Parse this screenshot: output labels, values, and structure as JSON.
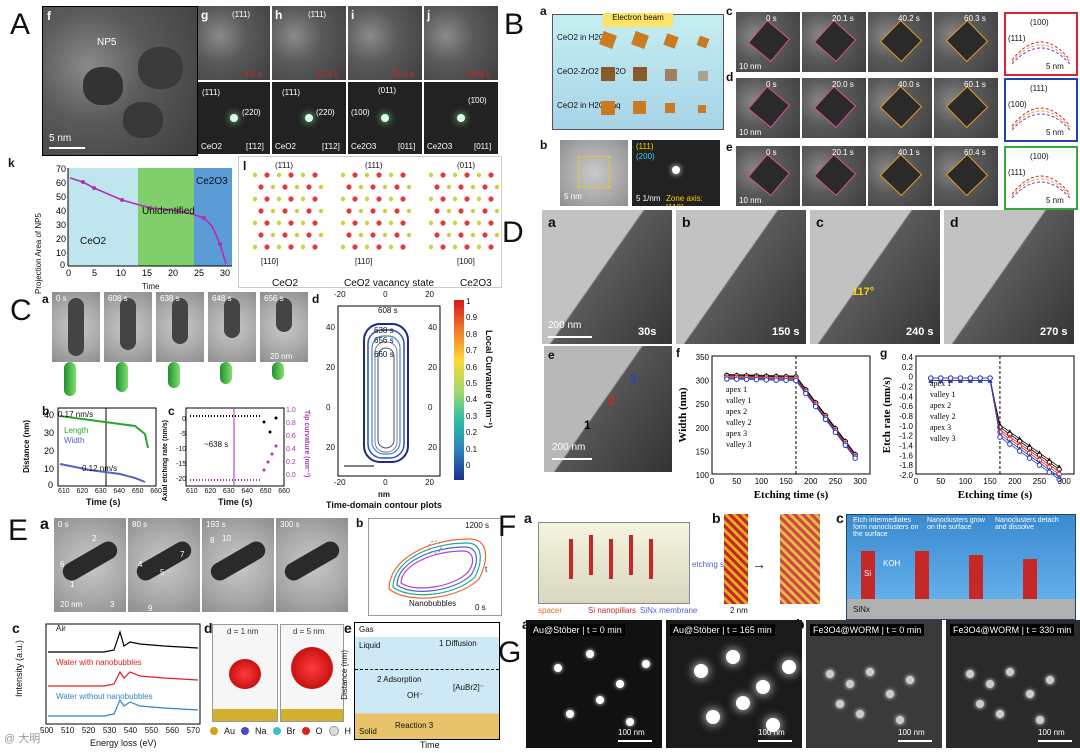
{
  "panels": {
    "A": {
      "label": "A",
      "f": "f",
      "g": "g",
      "h": "h",
      "i": "i",
      "j": "j",
      "k": "k",
      "l": "l",
      "np_label": "NP5",
      "scale": "5 nm",
      "times": [
        "3.5 s",
        "12.0 s",
        "26.0 s",
        "29.0 s"
      ],
      "fft_labels": {
        "g": [
          "(1̄11)",
          "(220)",
          "CeO2",
          "[1̄12]"
        ],
        "h": [
          "(1̄11)",
          "(220)",
          "CeO2",
          "[1̄12]"
        ],
        "i": [
          "(011)",
          "(100)",
          "Ce2O3",
          "[011]"
        ],
        "j": [
          "(1̄00)",
          "Ce2O3",
          "[011]"
        ]
      },
      "lattice_top": [
        "(1̄11)",
        "(1̄11)"
      ],
      "regions": [
        "CeO2",
        "Unidentified",
        "Ce2O3"
      ],
      "k_ylabel": "Projection Area of NP5",
      "k_xlabel": "Time",
      "l_planes": [
        "(1̄11)",
        "(111)",
        "(011)"
      ],
      "l_axes": [
        "[110]",
        "[110]",
        "[100]"
      ],
      "l_captions": [
        "CeO2",
        "CeO2 vacancy state",
        "Ce2O3"
      ]
    },
    "B": {
      "label": "B",
      "a": "a",
      "b": "b",
      "c": "c",
      "d": "d",
      "e": "e",
      "beam": "Electron beam",
      "layers": [
        "CeO2 in H2O",
        "CeO2-ZrO2 in H2O",
        "CeO2 in H2O2 aq"
      ],
      "b_scale": [
        "5 nm",
        "5 1/nm"
      ],
      "b_legend": [
        "(111)",
        "(200)"
      ],
      "zone": "Zone axis: [110]",
      "times_c": [
        "0 s",
        "20.1 s",
        "40.2 s",
        "60.3 s"
      ],
      "times_d": [
        "0 s",
        "20.0 s",
        "40.0 s",
        "60.1 s"
      ],
      "times_e": [
        "0 s",
        "20.1 s",
        "40.1 s",
        "60.4 s"
      ],
      "scales": [
        "10 nm",
        "10 nm",
        "10 nm",
        "5 nm",
        "5 nm",
        "5 nm"
      ],
      "facets_c": [
        "(100)",
        "(111)",
        "(111)"
      ],
      "facets_d": [
        "(111)",
        "(100)"
      ],
      "facets_e": [
        "(100)",
        "(111)",
        "(111)"
      ]
    },
    "C": {
      "label": "C",
      "a": "a",
      "b": "b",
      "c": "c",
      "d": "d",
      "times": [
        "0 s",
        "608 s",
        "638 s",
        "648 s",
        "656 s"
      ],
      "scale": "20 nm",
      "b_legend": [
        "Length",
        "Width"
      ],
      "b_rates": [
        "0.17 nm/s",
        "0.12 nm/s"
      ],
      "b_ylabel": "Distance (nm)",
      "b_xlabel": "Time (s)",
      "b_xticks": [
        "610",
        "620",
        "630",
        "640",
        "650",
        "660"
      ],
      "b_yticks": [
        "0",
        "10",
        "20",
        "30",
        "40"
      ],
      "c_ylabel": "Axial etching rate (nm/s)",
      "c_y2label": "Tip curvature (nm⁻¹)",
      "c_xlabel": "Time (s)",
      "c_note": "~638 s",
      "c_yticks": [
        "0",
        "-5",
        "-10",
        "-15",
        "-20"
      ],
      "c_y2ticks": [
        "1.0",
        "0.8",
        "0.6",
        "0.4",
        "0.2",
        "0.0"
      ],
      "c_xticks": [
        "610",
        "620",
        "630",
        "640",
        "650",
        "660"
      ],
      "d_title": "Time-domain contour plots",
      "d_xlabel": "nm",
      "d_ylabel": "nm",
      "d_cbar_label": "Local Curvature (nm⁻¹)",
      "d_cbar_ticks": [
        "1",
        "0.9",
        "0.8",
        "0.7",
        "0.6",
        "0.5",
        "0.4",
        "0.3",
        "0.2",
        "0.1",
        "0"
      ],
      "d_times": [
        "608 s",
        "638 s",
        "656 s",
        "660 s"
      ],
      "d_xticks": [
        "-20",
        "0",
        "20"
      ],
      "d_yticks": [
        "40",
        "20",
        "0",
        "20",
        "40"
      ]
    },
    "D": {
      "label": "D",
      "frames": [
        "a",
        "b",
        "c",
        "d"
      ],
      "times": [
        "30s",
        "150 s",
        "240 s",
        "270 s"
      ],
      "scale": "200 nm",
      "angle": "117°",
      "e": "e",
      "f": "f",
      "g": "g",
      "e_marks": [
        "1",
        "2",
        "3"
      ],
      "legend": [
        "apex 1",
        "valley 1",
        "apex 2",
        "valley 2",
        "apex 3",
        "valley 3"
      ],
      "f_ylabel": "Width (nm)",
      "g_ylabel": "Etch rate (nm/s)",
      "xlabel": "Etching time (s)",
      "f_yticks": [
        "350",
        "300",
        "250",
        "200",
        "150",
        "100"
      ],
      "g_yticks": [
        "0.4",
        "0.2",
        "0",
        "-0.2",
        "-0.4",
        "-0.6",
        "-0.8",
        "-1.0",
        "-1.2",
        "-1.4",
        "-1.6",
        "-1.8",
        "-2.0"
      ],
      "xticks": [
        "0",
        "50",
        "100",
        "150",
        "200",
        "250",
        "300"
      ]
    },
    "E": {
      "label": "E",
      "a": "a",
      "b": "b",
      "c": "c",
      "d": "d",
      "e": "e",
      "times": [
        "0 s",
        "80 s",
        "193 s",
        "300 s"
      ],
      "scale": "20 nm",
      "numbers": [
        "1",
        "2",
        "3",
        "4",
        "5",
        "6",
        "7",
        "8",
        "9",
        "10"
      ],
      "b_times": [
        "1200 s",
        "t",
        "0 s"
      ],
      "b_note": "Nanobubbles",
      "c_legend": [
        "Air",
        "Water with nanobubbles",
        "Water without nanobubbles"
      ],
      "c_ylabel": "Intensity (a.u.)",
      "c_xlabel": "Energy loss (eV)",
      "c_xticks": [
        "500",
        "510",
        "520",
        "530",
        "540",
        "550",
        "560",
        "570"
      ],
      "d_labels": [
        "d = 1 nm",
        "d = 5 nm"
      ],
      "d_legend": [
        "Au",
        "Na",
        "Br",
        "O",
        "H"
      ],
      "e_labels": [
        "Gas",
        "Liquid",
        "Solid",
        "1 Diffusion",
        "2 Adsorption",
        "OH⁻",
        "[AuBr2]⁻",
        "Reaction 3"
      ],
      "e_xlabel": "Time",
      "e_ylabel": "Distance (nm)"
    },
    "F": {
      "label": "F",
      "a": "a",
      "b": "b",
      "c": "c",
      "a_labels": [
        "etching solution",
        "spacer",
        "Si nanopillars",
        "SiNx membrane"
      ],
      "b_scale": "2 nm",
      "c_labels": [
        "Etch intermediates form nanoclusters on the surface",
        "Nanoclusters grow on the surface",
        "Nanoclusters detach and dissolve",
        "KOH",
        "Si",
        "SiNx"
      ]
    },
    "G": {
      "label": "G",
      "a": "a",
      "b": "b",
      "titles": [
        "Au@Stöber | t = 0 min",
        "Au@Stöber | t = 165 min",
        "Fe3O4@WORM | t = 0 min",
        "Fe3O4@WORM | t = 330 min"
      ],
      "scale": "100 nm"
    }
  },
  "watermark": "@ 大明"
}
